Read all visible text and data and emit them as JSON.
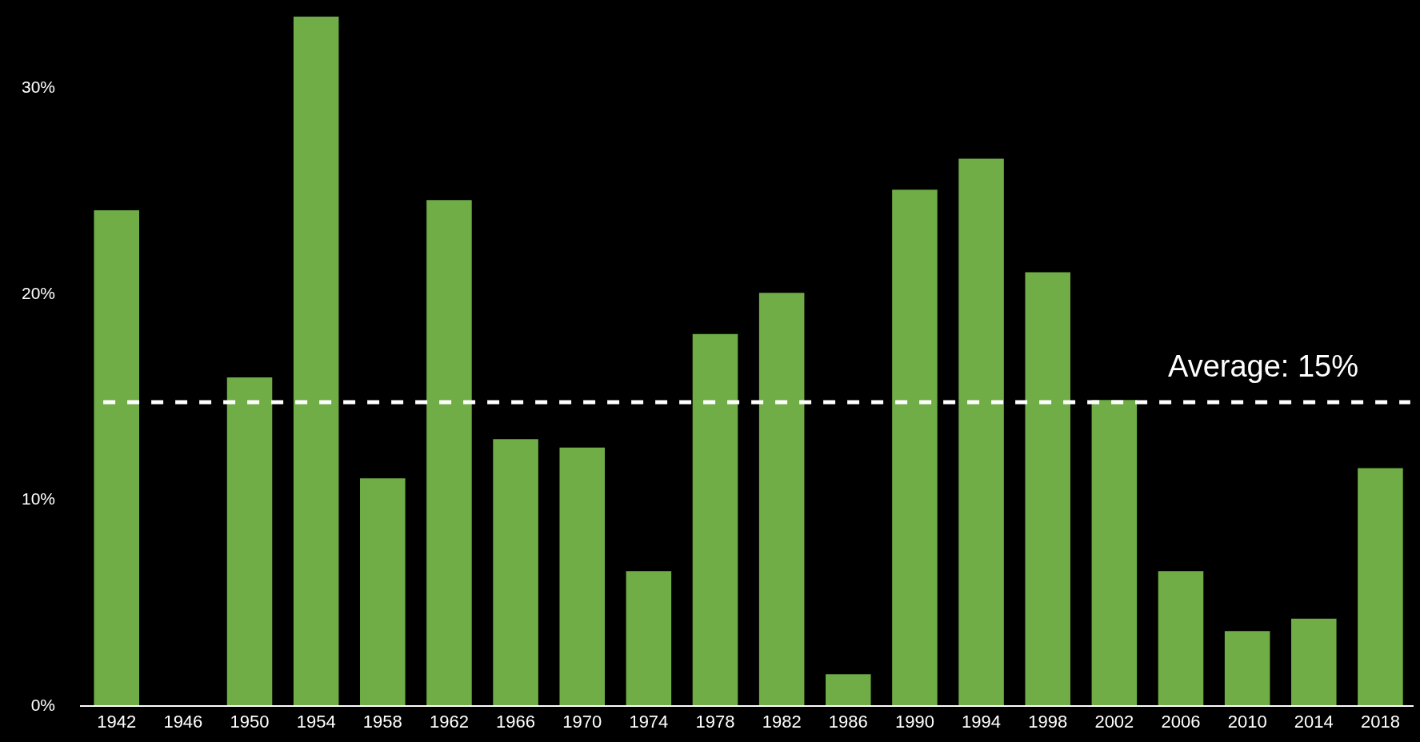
{
  "chart_data": {
    "type": "bar",
    "categories": [
      "1942",
      "1946",
      "1950",
      "1954",
      "1958",
      "1962",
      "1966",
      "1970",
      "1974",
      "1978",
      "1982",
      "1986",
      "1990",
      "1994",
      "1998",
      "2002",
      "2006",
      "2010",
      "2014",
      "2018"
    ],
    "values": [
      24.0,
      0,
      15.9,
      33.4,
      11.0,
      24.5,
      12.9,
      12.5,
      6.5,
      18.0,
      20.0,
      1.5,
      25.0,
      26.5,
      21.0,
      14.8,
      6.5,
      3.6,
      4.2,
      11.5
    ],
    "color": "#70ad47",
    "ylim": [
      0,
      34.2
    ],
    "yticks": [
      {
        "value": 0,
        "label": "0%"
      },
      {
        "value": 10,
        "label": "10%"
      },
      {
        "value": 20,
        "label": "20%"
      },
      {
        "value": 30,
        "label": "30%"
      }
    ],
    "ref_lines": [
      {
        "axis": "y",
        "value": 14.7,
        "label": "Average: 15%",
        "color": "#ffffff",
        "line_style": "dashed"
      }
    ],
    "grid": false,
    "legend": false
  }
}
